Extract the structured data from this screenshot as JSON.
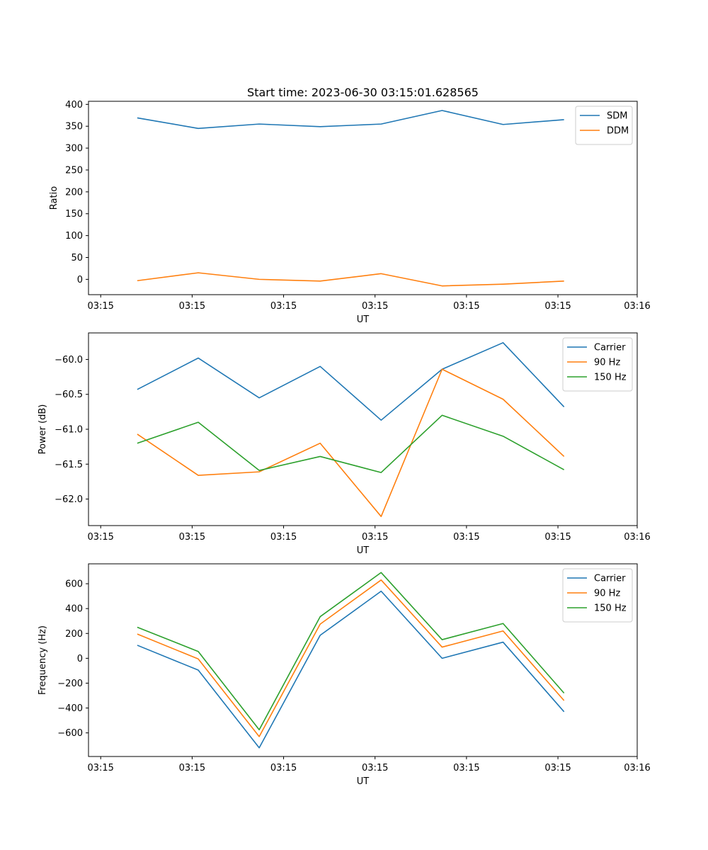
{
  "chart_data": [
    {
      "type": "line",
      "title": "Start time: 2023-06-30 03:15:01.628565",
      "xlabel": "UT",
      "ylabel": "Ratio",
      "x": [
        1,
        2,
        3,
        4,
        5,
        6,
        7,
        8
      ],
      "xlim": [
        0.2,
        9.2
      ],
      "xtick_values": [
        0.4,
        1.9,
        3.4,
        4.9,
        6.4,
        7.9,
        9.2
      ],
      "xtick_labels": [
        "03:15",
        "03:15",
        "03:15",
        "03:15",
        "03:15",
        "03:15",
        "03:16"
      ],
      "ylim": [
        -35,
        407
      ],
      "yticks": [
        0,
        50,
        100,
        150,
        200,
        250,
        300,
        350,
        400
      ],
      "legend": "top-right",
      "series": [
        {
          "name": "SDM",
          "color": "#1f77b4",
          "values": [
            369,
            345,
            355,
            349,
            355,
            386,
            354,
            365
          ]
        },
        {
          "name": "DDM",
          "color": "#ff7f0e",
          "values": [
            -3,
            15,
            0,
            -4,
            13,
            -15,
            -11,
            -4
          ]
        }
      ]
    },
    {
      "type": "line",
      "title": "",
      "xlabel": "UT",
      "ylabel": "Power (dB)",
      "x": [
        1,
        2,
        3,
        4,
        5,
        6,
        7,
        8
      ],
      "xlim": [
        0.2,
        9.2
      ],
      "xtick_values": [
        0.4,
        1.9,
        3.4,
        4.9,
        6.4,
        7.9,
        9.2
      ],
      "xtick_labels": [
        "03:15",
        "03:15",
        "03:15",
        "03:15",
        "03:15",
        "03:15",
        "03:16"
      ],
      "ylim": [
        -62.38,
        -59.62
      ],
      "yticks": [
        -62.0,
        -61.5,
        -61.0,
        -60.5,
        -60.0
      ],
      "ytick_labels": [
        "−62.0",
        "−61.5",
        "−61.0",
        "−60.5",
        "−60.0"
      ],
      "legend": "top-right",
      "series": [
        {
          "name": "Carrier",
          "color": "#1f77b4",
          "values": [
            -60.43,
            -59.98,
            -60.55,
            -60.1,
            -60.87,
            -60.14,
            -59.76,
            -60.68
          ]
        },
        {
          "name": "90 Hz",
          "color": "#ff7f0e",
          "values": [
            -61.07,
            -61.66,
            -61.61,
            -61.2,
            -62.25,
            -60.14,
            -60.57,
            -61.39
          ]
        },
        {
          "name": "150 Hz",
          "color": "#2ca02c",
          "values": [
            -61.2,
            -60.9,
            -61.59,
            -61.39,
            -61.62,
            -60.8,
            -61.1,
            -61.58
          ]
        }
      ]
    },
    {
      "type": "line",
      "title": "",
      "xlabel": "UT",
      "ylabel": "Frequency (Hz)",
      "x": [
        1,
        2,
        3,
        4,
        5,
        6,
        7,
        8
      ],
      "xlim": [
        0.2,
        9.2
      ],
      "xtick_values": [
        0.4,
        1.9,
        3.4,
        4.9,
        6.4,
        7.9,
        9.2
      ],
      "xtick_labels": [
        "03:15",
        "03:15",
        "03:15",
        "03:15",
        "03:15",
        "03:15",
        "03:16"
      ],
      "ylim": [
        -790,
        760
      ],
      "yticks": [
        -600,
        -400,
        -200,
        0,
        200,
        400,
        600
      ],
      "ytick_labels": [
        "−600",
        "−400",
        "−200",
        "0",
        "200",
        "400",
        "600"
      ],
      "legend": "top-right",
      "series": [
        {
          "name": "Carrier",
          "color": "#1f77b4",
          "values": [
            105,
            -95,
            -720,
            185,
            540,
            0,
            130,
            -430
          ]
        },
        {
          "name": "90 Hz",
          "color": "#ff7f0e",
          "values": [
            195,
            -5,
            -630,
            275,
            630,
            90,
            220,
            -340
          ]
        },
        {
          "name": "150 Hz",
          "color": "#2ca02c",
          "values": [
            250,
            55,
            -575,
            335,
            690,
            150,
            280,
            -280
          ]
        }
      ]
    }
  ]
}
